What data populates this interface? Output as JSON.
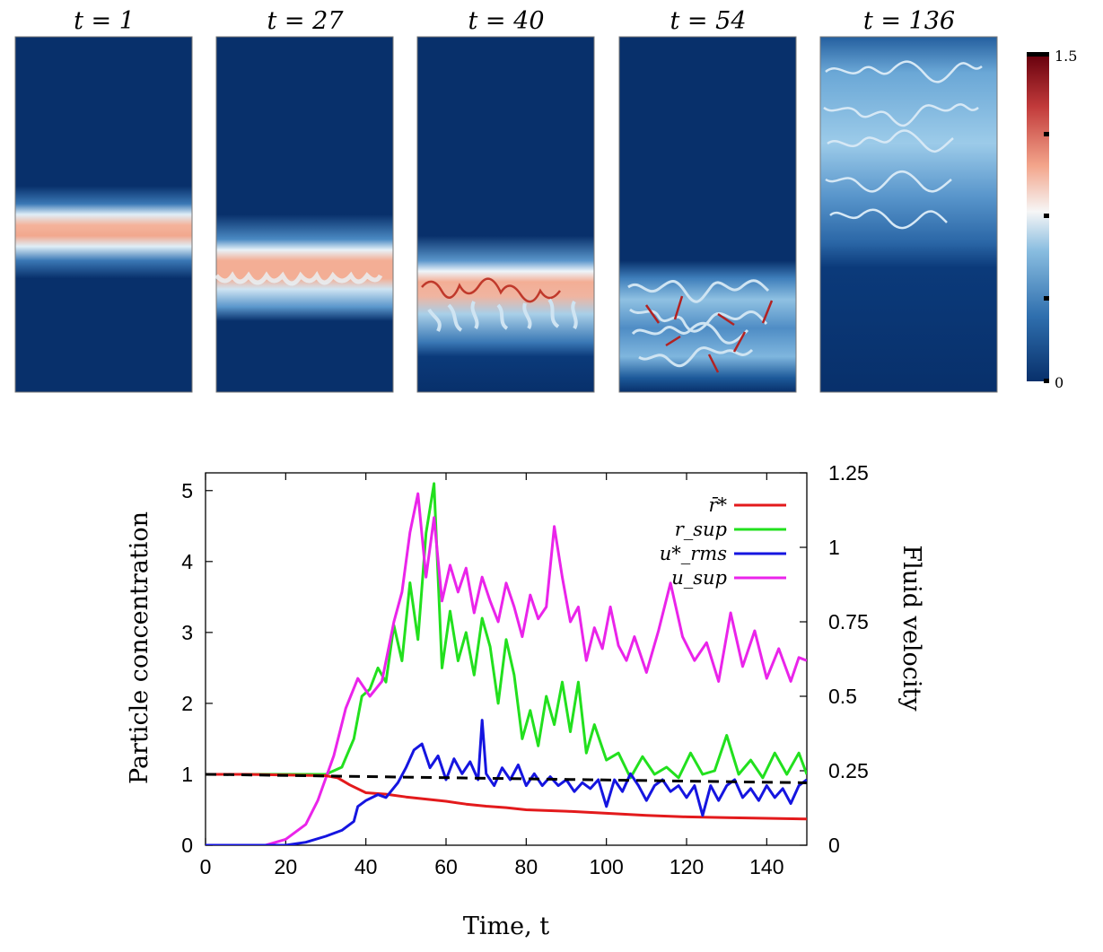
{
  "panels": {
    "labels": [
      "t = 1",
      "t = 27",
      "t = 40",
      "t = 54",
      "t = 136"
    ],
    "times": [
      1,
      27,
      40,
      54,
      136
    ],
    "colorbar": {
      "max_label": "1.5",
      "min_label": "0",
      "range": [
        0,
        1.5
      ],
      "colors": [
        "#08306b",
        "#2f6fae",
        "#89bde0",
        "#f6f6f6",
        "#f3a58b",
        "#c23b3b",
        "#67000d"
      ]
    }
  },
  "chart_data": {
    "type": "line",
    "xlabel": "Time, t",
    "ylabel_left": "Particle concentration",
    "ylabel_right": "Fluid velocity",
    "xlim": [
      0,
      150
    ],
    "ylim_left": [
      0,
      5.25
    ],
    "ylim_right": [
      0,
      1.25
    ],
    "x_ticks": [
      "0",
      "20",
      "40",
      "60",
      "80",
      "100",
      "120",
      "140"
    ],
    "y_ticks_left": [
      "0",
      "1",
      "2",
      "3",
      "4",
      "5"
    ],
    "y_ticks_right": [
      "0",
      "0.25",
      "0.5",
      "0.75",
      "1",
      "1.25"
    ],
    "legend_position": "top-right",
    "reference_line": {
      "axis": "left",
      "x": [
        0,
        150
      ],
      "y": [
        1.0,
        0.88
      ],
      "color": "#000000",
      "style": "dashed"
    },
    "series": [
      {
        "name": "r̄*",
        "axis": "left",
        "color": "#e31a1c",
        "x": [
          0,
          10,
          20,
          30,
          33,
          36,
          40,
          45,
          50,
          55,
          60,
          65,
          70,
          75,
          80,
          90,
          100,
          110,
          120,
          130,
          140,
          150
        ],
        "y": [
          1.0,
          1.0,
          0.99,
          0.98,
          0.95,
          0.85,
          0.74,
          0.72,
          0.68,
          0.65,
          0.62,
          0.58,
          0.55,
          0.53,
          0.5,
          0.48,
          0.45,
          0.42,
          0.4,
          0.39,
          0.38,
          0.37
        ]
      },
      {
        "name": "r_sup",
        "axis": "left",
        "color": "#22e01e",
        "x": [
          0,
          10,
          20,
          30,
          34,
          37,
          39,
          41,
          43,
          45,
          47,
          49,
          51,
          53,
          55,
          57,
          59,
          61,
          63,
          65,
          67,
          69,
          71,
          73,
          75,
          77,
          79,
          81,
          83,
          85,
          87,
          89,
          91,
          93,
          95,
          97,
          100,
          103,
          106,
          109,
          112,
          115,
          118,
          121,
          124,
          127,
          130,
          133,
          136,
          139,
          142,
          145,
          148,
          150
        ],
        "y": [
          1.0,
          1.0,
          1.0,
          1.0,
          1.1,
          1.5,
          2.1,
          2.2,
          2.5,
          2.3,
          3.1,
          2.6,
          3.7,
          2.9,
          4.4,
          5.1,
          2.5,
          3.3,
          2.6,
          3.0,
          2.4,
          3.2,
          2.8,
          2.0,
          2.9,
          2.4,
          1.5,
          1.9,
          1.4,
          2.1,
          1.7,
          2.3,
          1.6,
          2.3,
          1.3,
          1.7,
          1.2,
          1.3,
          0.95,
          1.25,
          1.0,
          1.1,
          0.95,
          1.3,
          1.0,
          1.05,
          1.55,
          1.0,
          1.2,
          0.95,
          1.3,
          1.0,
          1.3,
          1.0
        ]
      },
      {
        "name": "u*_rms",
        "axis": "right",
        "color": "#1515e0",
        "x": [
          0,
          20,
          25,
          30,
          34,
          37,
          38,
          40,
          43,
          45,
          48,
          50,
          52,
          54,
          56,
          58,
          60,
          62,
          64,
          66,
          68,
          69,
          70,
          72,
          74,
          76,
          78,
          80,
          82,
          84,
          86,
          88,
          90,
          92,
          94,
          96,
          98,
          100,
          102,
          104,
          106,
          108,
          110,
          112,
          114,
          116,
          118,
          120,
          122,
          124,
          126,
          128,
          130,
          132,
          134,
          136,
          138,
          140,
          142,
          144,
          146,
          148,
          150
        ],
        "y": [
          0.0,
          0.0,
          0.01,
          0.03,
          0.05,
          0.08,
          0.13,
          0.15,
          0.17,
          0.16,
          0.21,
          0.26,
          0.32,
          0.34,
          0.26,
          0.3,
          0.22,
          0.29,
          0.24,
          0.28,
          0.22,
          0.42,
          0.24,
          0.2,
          0.26,
          0.22,
          0.27,
          0.2,
          0.24,
          0.2,
          0.23,
          0.2,
          0.22,
          0.18,
          0.21,
          0.19,
          0.22,
          0.13,
          0.22,
          0.18,
          0.24,
          0.2,
          0.15,
          0.2,
          0.22,
          0.18,
          0.2,
          0.16,
          0.2,
          0.1,
          0.2,
          0.15,
          0.2,
          0.22,
          0.16,
          0.19,
          0.15,
          0.2,
          0.16,
          0.19,
          0.14,
          0.2,
          0.22
        ]
      },
      {
        "name": "u_sup",
        "axis": "right",
        "color": "#ea24ea",
        "x": [
          0,
          15,
          20,
          25,
          28,
          32,
          35,
          38,
          41,
          44,
          47,
          49,
          51,
          53,
          55,
          57,
          59,
          61,
          63,
          65,
          67,
          69,
          71,
          73,
          75,
          77,
          79,
          81,
          83,
          85,
          87,
          89,
          91,
          93,
          95,
          97,
          99,
          101,
          103,
          105,
          107,
          110,
          113,
          116,
          119,
          122,
          125,
          128,
          131,
          134,
          137,
          140,
          143,
          146,
          148,
          150
        ],
        "y": [
          0.0,
          0.0,
          0.02,
          0.07,
          0.15,
          0.3,
          0.46,
          0.56,
          0.5,
          0.55,
          0.75,
          0.85,
          1.05,
          1.18,
          0.9,
          1.1,
          0.82,
          0.94,
          0.85,
          0.93,
          0.78,
          0.9,
          0.82,
          0.75,
          0.88,
          0.8,
          0.7,
          0.84,
          0.76,
          0.8,
          1.07,
          0.9,
          0.75,
          0.8,
          0.62,
          0.73,
          0.66,
          0.8,
          0.67,
          0.62,
          0.7,
          0.58,
          0.72,
          0.88,
          0.7,
          0.62,
          0.68,
          0.55,
          0.78,
          0.6,
          0.72,
          0.56,
          0.66,
          0.55,
          0.63,
          0.62
        ]
      }
    ]
  }
}
